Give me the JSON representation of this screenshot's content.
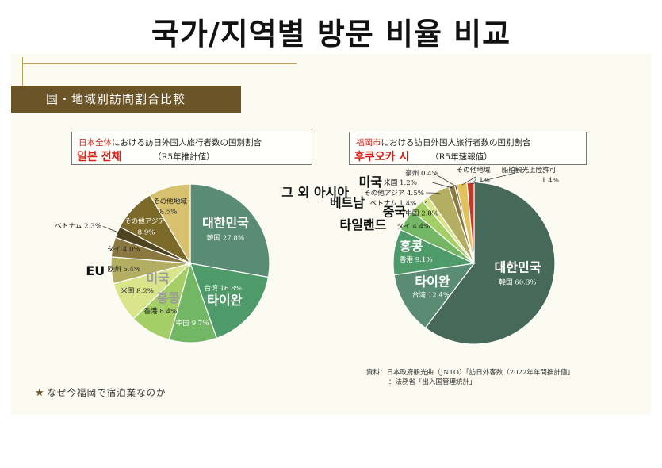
{
  "page": {
    "title": "국가/지역별 방문 비율 비교",
    "banner": "国・地域別訪問割合比較",
    "footer": "なぜ今福岡で宿泊業なのか",
    "footer_icon": "star-icon",
    "source_lines": [
      "資料：日本政府観光曲（JNTO）「訪日外客数（2022年年間推計値」",
      "：法務省「出入国管理統計」"
    ]
  },
  "colors": {
    "banner": "#6a5428",
    "accent_red": "#c0261e",
    "panel": "#fcfbf2"
  },
  "chart_data": [
    {
      "type": "pie",
      "title_red": "日本全体",
      "title_rest": "における訪日外国人旅行者数の国別割合",
      "title_ko": "일본 전체",
      "note": "（R5年推計値）",
      "slices": [
        {
          "label": "韓国 27.8%",
          "value": 27.8,
          "color": "#5a8b73",
          "ko": "대한민국"
        },
        {
          "label": "台湾 16.8%",
          "value": 16.8,
          "color": "#4e9a68",
          "ko": "타이완"
        },
        {
          "label": "中国 9.7%",
          "value": 9.7,
          "color": "#73b765",
          "ko": ""
        },
        {
          "label": "香港 8.4%",
          "value": 8.4,
          "color": "#a4cf67",
          "ko": "홍콩"
        },
        {
          "label": "米国 8.2%",
          "value": 8.2,
          "color": "#d9e58a",
          "ko": "미국"
        },
        {
          "label": "欧州 5.4%",
          "value": 5.4,
          "color": "#b3ae62",
          "ko": "EU"
        },
        {
          "label": "タイ 4.0%",
          "value": 4.0,
          "color": "#8a7840",
          "ko": ""
        },
        {
          "label": "ベトナム 2.3%",
          "value": 2.3,
          "color": "#4e4420",
          "ko": ""
        },
        {
          "label": "その他アジア 8.9%",
          "value": 8.9,
          "color": "#7c6a2a",
          "ko": ""
        },
        {
          "label": "その他地域 8.5%",
          "value": 8.5,
          "color": "#d8c270",
          "ko": ""
        }
      ]
    },
    {
      "type": "pie",
      "title_red": "福岡市",
      "title_rest": "における訪日外国人旅行者数の国別割合",
      "title_ko": "후쿠오카 시",
      "note": "（R5年速報値）",
      "slices": [
        {
          "label": "韓国 60.3%",
          "value": 60.3,
          "color": "#46695a",
          "ko": "대한민국"
        },
        {
          "label": "台湾 12.4%",
          "value": 12.4,
          "color": "#5a8b73",
          "ko": "타이완"
        },
        {
          "label": "香港 9.1%",
          "value": 9.1,
          "color": "#4e9a68",
          "ko": "홍콩"
        },
        {
          "label": "タイ 4.4%",
          "value": 4.4,
          "color": "#73b765",
          "ko": "타일랜드"
        },
        {
          "label": "中国 2.8%",
          "value": 2.8,
          "color": "#a4cf67",
          "ko": "중국"
        },
        {
          "label": "ベトナム 1.4%",
          "value": 1.4,
          "color": "#d9e58a",
          "ko": "베트남"
        },
        {
          "label": "その他アジア 4.5%",
          "value": 4.5,
          "color": "#b3ae62",
          "ko": "그 외 아시아"
        },
        {
          "label": "米国 1.2%",
          "value": 1.2,
          "color": "#8a7840",
          "ko": "미국"
        },
        {
          "label": "豪州 0.4%",
          "value": 0.4,
          "color": "#5b5226",
          "ko": ""
        },
        {
          "label": "その他地域 2.1%",
          "value": 2.1,
          "color": "#e2c25a",
          "ko": ""
        },
        {
          "label": "船舶観光上陸許可 1.4%",
          "value": 1.4,
          "color": "#c0392b",
          "ko": ""
        }
      ]
    }
  ]
}
